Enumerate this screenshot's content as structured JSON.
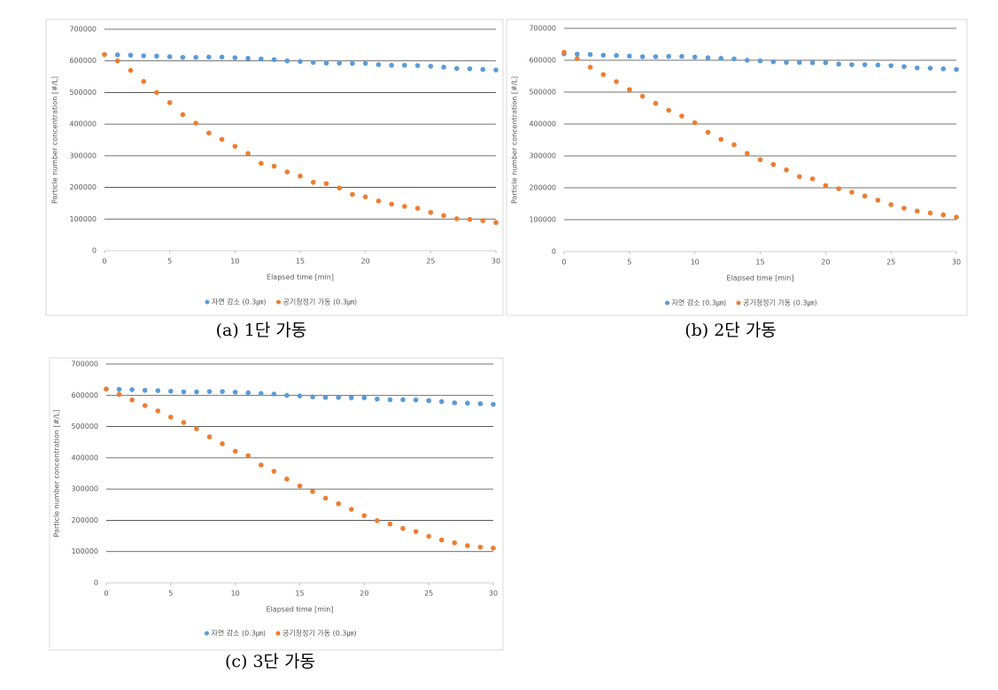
{
  "chart_data": [
    {
      "type": "scatter",
      "caption": "(a) 1단 가동",
      "x_label": "Elapsed time [min]",
      "y_label": "Particle number concentration [#/L]",
      "x": [
        0,
        1,
        2,
        3,
        4,
        5,
        6,
        7,
        8,
        9,
        10,
        11,
        12,
        13,
        14,
        15,
        16,
        17,
        18,
        19,
        20,
        21,
        22,
        23,
        24,
        25,
        26,
        27,
        28,
        29,
        30
      ],
      "series": [
        {
          "name": "자연 감소 (0.3㎛)",
          "color": "#5b9bd5",
          "values": [
            620000,
            619000,
            618000,
            616000,
            615000,
            613000,
            611000,
            611000,
            612000,
            612000,
            610000,
            608000,
            606000,
            604000,
            600000,
            598000,
            595000,
            593000,
            593000,
            592000,
            592000,
            588000,
            586000,
            586000,
            585000,
            583000,
            580000,
            576000,
            575000,
            573000,
            571000
          ]
        },
        {
          "name": "공기청정기 가동 (0.3㎛)",
          "color": "#ed7d31",
          "values": [
            620000,
            600000,
            570000,
            535000,
            500000,
            468000,
            430000,
            403000,
            372000,
            352000,
            330000,
            307000,
            276000,
            267000,
            249000,
            236000,
            216000,
            212000,
            198000,
            178000,
            170000,
            157000,
            147000,
            140000,
            134000,
            121000,
            111000,
            101000,
            99000,
            95000,
            89000
          ]
        }
      ],
      "xlim": [
        0,
        30
      ],
      "xticks": [
        0,
        5,
        10,
        15,
        20,
        25,
        30
      ],
      "ylim": [
        0,
        700000
      ],
      "yticks": [
        0,
        100000,
        200000,
        300000,
        400000,
        500000,
        600000,
        700000
      ],
      "grid": true,
      "legend": "bottom"
    },
    {
      "type": "scatter",
      "caption": "(b) 2단 가동",
      "x_label": "Elapsed time [min]",
      "y_label": "Particle number concentration [#/L]",
      "x": [
        0,
        1,
        2,
        3,
        4,
        5,
        6,
        7,
        8,
        9,
        10,
        11,
        12,
        13,
        14,
        15,
        16,
        17,
        18,
        19,
        20,
        21,
        22,
        23,
        24,
        25,
        26,
        27,
        28,
        29,
        30
      ],
      "series": [
        {
          "name": "자연 감소 (0.3㎛)",
          "color": "#5b9bd5",
          "values": [
            620000,
            619000,
            618000,
            616000,
            615000,
            613000,
            611000,
            611000,
            612000,
            612000,
            610000,
            608000,
            606000,
            604000,
            600000,
            598000,
            595000,
            593000,
            593000,
            592000,
            592000,
            588000,
            586000,
            586000,
            585000,
            583000,
            580000,
            576000,
            575000,
            573000,
            571000
          ]
        },
        {
          "name": "공기청정기 가동 (0.3㎛)",
          "color": "#ed7d31",
          "values": [
            625000,
            605000,
            578000,
            555000,
            533000,
            508000,
            487000,
            465000,
            443000,
            425000,
            404000,
            374000,
            352000,
            335000,
            308000,
            288000,
            273000,
            256000,
            235000,
            228000,
            207000,
            197000,
            186000,
            174000,
            161000,
            147000,
            136000,
            127000,
            121000,
            115000,
            108000
          ]
        }
      ],
      "xlim": [
        0,
        30
      ],
      "xticks": [
        0,
        5,
        10,
        15,
        20,
        25,
        30
      ],
      "ylim": [
        0,
        700000
      ],
      "yticks": [
        0,
        100000,
        200000,
        300000,
        400000,
        500000,
        600000,
        700000
      ],
      "grid": true,
      "legend": "bottom"
    },
    {
      "type": "scatter",
      "caption": "(c) 3단 가동",
      "x_label": "Elapsed time [min]",
      "y_label": "Particle number concentration [#/L]",
      "x": [
        0,
        1,
        2,
        3,
        4,
        5,
        6,
        7,
        8,
        9,
        10,
        11,
        12,
        13,
        14,
        15,
        16,
        17,
        18,
        19,
        20,
        21,
        22,
        23,
        24,
        25,
        26,
        27,
        28,
        29,
        30
      ],
      "series": [
        {
          "name": "자연 감소 (0.3㎛)",
          "color": "#5b9bd5",
          "values": [
            620000,
            619000,
            618000,
            616000,
            615000,
            613000,
            611000,
            611000,
            612000,
            612000,
            610000,
            608000,
            606000,
            604000,
            600000,
            598000,
            595000,
            593000,
            593000,
            592000,
            592000,
            588000,
            586000,
            586000,
            585000,
            583000,
            580000,
            576000,
            575000,
            573000,
            571000
          ]
        },
        {
          "name": "공기청정기 가동 (0.3㎛)",
          "color": "#ed7d31",
          "values": [
            620000,
            603000,
            585000,
            567000,
            550000,
            530000,
            513000,
            493000,
            467000,
            445000,
            421000,
            407000,
            377000,
            357000,
            332000,
            310000,
            292000,
            271000,
            253000,
            235000,
            215000,
            199000,
            188000,
            174000,
            164000,
            149000,
            137000,
            128000,
            119000,
            114000,
            111000
          ]
        }
      ],
      "xlim": [
        0,
        30
      ],
      "xticks": [
        0,
        5,
        10,
        15,
        20,
        25,
        30
      ],
      "ylim": [
        0,
        700000
      ],
      "yticks": [
        0,
        100000,
        200000,
        300000,
        400000,
        500000,
        600000,
        700000
      ],
      "grid": true,
      "legend": "bottom"
    }
  ]
}
